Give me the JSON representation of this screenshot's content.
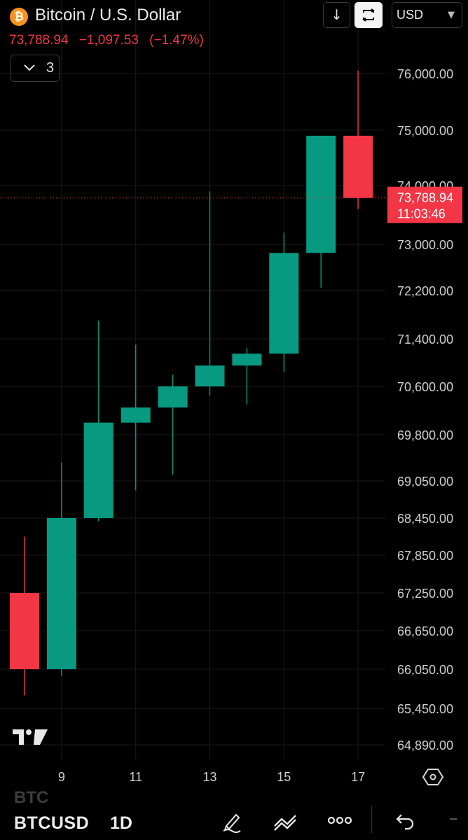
{
  "header": {
    "coin_glyph": "₿",
    "title": "Bitcoin / U.S. Dollar",
    "download_icon": "↓",
    "currency": "USD"
  },
  "quote": {
    "price": "73,788.94",
    "change": "−1,097.53",
    "change_pct": "(−1.47%)",
    "color": "#f23645"
  },
  "indicators": {
    "count": "3"
  },
  "price_badge": {
    "price": "73,788.94",
    "countdown": "11:03:46",
    "color": "#f23645"
  },
  "colors": {
    "up": "#089981",
    "down": "#f23645",
    "grid": "#1a1a1a",
    "axis_text": "#cfcfcf"
  },
  "logo_text": "TV",
  "settings_icon": "hexagon-gear-icon",
  "bottom": {
    "symbol": "BTCUSD",
    "symbol_faded": "BTC",
    "timeframe": "1D"
  },
  "chart_data": {
    "type": "candlestick",
    "y_ticks": [
      "76,000.00",
      "75,000.00",
      "74,000.00",
      "73,000.00",
      "72,200.00",
      "71,400.00",
      "70,600.00",
      "69,800.00",
      "69,050.00",
      "68,450.00",
      "67,850.00",
      "67,250.00",
      "66,650.00",
      "66,050.00",
      "65,450.00",
      "64,890.00"
    ],
    "x_ticks": [
      "9",
      "11",
      "13",
      "15",
      "17"
    ],
    "candles": [
      {
        "day": "8",
        "open": 67250,
        "high": 68150,
        "low": 65650,
        "close": 66050
      },
      {
        "day": "9",
        "open": 66050,
        "high": 69350,
        "low": 65950,
        "close": 68450
      },
      {
        "day": "10",
        "open": 68450,
        "high": 71700,
        "low": 68400,
        "close": 70000
      },
      {
        "day": "11",
        "open": 70000,
        "high": 71300,
        "low": 68900,
        "close": 70250
      },
      {
        "day": "12",
        "open": 70250,
        "high": 70800,
        "low": 69150,
        "close": 70600
      },
      {
        "day": "13",
        "open": 70600,
        "high": 73900,
        "low": 70450,
        "close": 70950
      },
      {
        "day": "14",
        "open": 70950,
        "high": 71250,
        "low": 70300,
        "close": 71150
      },
      {
        "day": "15",
        "open": 71150,
        "high": 73200,
        "low": 70850,
        "close": 72850
      },
      {
        "day": "16",
        "open": 72850,
        "high": 74900,
        "low": 72250,
        "close": 74900
      },
      {
        "day": "17",
        "open": 74900,
        "high": 76050,
        "low": 73600,
        "close": 73788.94
      }
    ]
  }
}
